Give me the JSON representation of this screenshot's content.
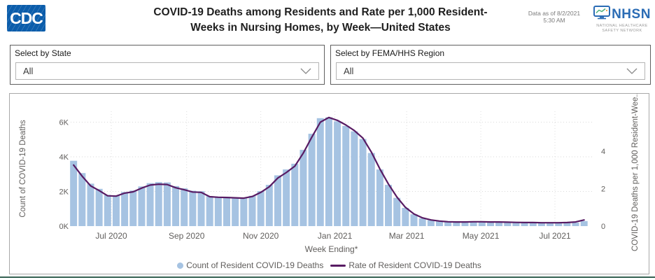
{
  "header": {
    "cdc_logo_text": "CDC",
    "title_lines": [
      "COVID-19 Deaths among Residents and Rate per 1,000 Resident-",
      "Weeks in Nursing Homes, by Week—United States"
    ],
    "data_as_of_line1": "Data as of 8/2/2021",
    "data_as_of_line2": "5:30 AM",
    "nhsn": {
      "acronym": "NHSN",
      "subtitle_line1": "NATIONAL HEALTHCARE",
      "subtitle_line2": "SAFETY NETWORK"
    }
  },
  "filters": [
    {
      "label": "Select by State",
      "value": "All"
    },
    {
      "label": "Select by FEMA/HHS Region",
      "value": "All"
    }
  ],
  "colors": {
    "cdc_blue": "#0b5dab",
    "nhsn_blue": "#2b6cb5",
    "bar_fill": "#a6c3e2",
    "rate_line": "#581b63",
    "divider_green": "#356253"
  },
  "chart_data": {
    "type": "combo",
    "title": "COVID-19 Deaths among Residents and Rate per 1,000 Resident-Weeks in Nursing Homes, by Week—United States",
    "xlabel": "Week Ending*",
    "ylabel_left": "Count of COVID-19 Deaths",
    "ylabel_right": "COVID-19 Deaths per 1,000 Resident-Wee...",
    "grid": true,
    "legend_position": "bottom",
    "y_left_ticks": [
      {
        "label": "0K",
        "value": 0
      },
      {
        "label": "2K",
        "value": 2000
      },
      {
        "label": "4K",
        "value": 4000
      },
      {
        "label": "6K",
        "value": 6000
      }
    ],
    "y_left_max": 6550,
    "y_right_ticks": [
      {
        "label": "0",
        "value": 0
      },
      {
        "label": "2",
        "value": 2
      },
      {
        "label": "4",
        "value": 4
      }
    ],
    "y_right_max": 6.1,
    "x_ticks": [
      {
        "label": "Jul 2020",
        "date": "2020-07-01"
      },
      {
        "label": "Sep 2020",
        "date": "2020-09-01"
      },
      {
        "label": "Nov 2020",
        "date": "2020-11-01"
      },
      {
        "label": "Jan 2021",
        "date": "2021-01-01"
      },
      {
        "label": "Mar 2021",
        "date": "2021-03-01"
      },
      {
        "label": "May 2021",
        "date": "2021-05-01"
      },
      {
        "label": "Jul 2021",
        "date": "2021-07-01"
      }
    ],
    "weeks": [
      "2020-05-31",
      "2020-06-07",
      "2020-06-14",
      "2020-06-21",
      "2020-06-28",
      "2020-07-05",
      "2020-07-12",
      "2020-07-19",
      "2020-07-26",
      "2020-08-02",
      "2020-08-09",
      "2020-08-16",
      "2020-08-23",
      "2020-08-30",
      "2020-09-06",
      "2020-09-13",
      "2020-09-20",
      "2020-09-27",
      "2020-10-04",
      "2020-10-11",
      "2020-10-18",
      "2020-10-25",
      "2020-11-01",
      "2020-11-08",
      "2020-11-15",
      "2020-11-22",
      "2020-11-29",
      "2020-12-06",
      "2020-12-13",
      "2020-12-20",
      "2020-12-27",
      "2021-01-03",
      "2021-01-10",
      "2021-01-17",
      "2021-01-24",
      "2021-01-31",
      "2021-02-07",
      "2021-02-14",
      "2021-02-21",
      "2021-02-28",
      "2021-03-07",
      "2021-03-14",
      "2021-03-21",
      "2021-03-28",
      "2021-04-04",
      "2021-04-11",
      "2021-04-18",
      "2021-04-25",
      "2021-05-02",
      "2021-05-09",
      "2021-05-16",
      "2021-05-23",
      "2021-05-30",
      "2021-06-06",
      "2021-06-13",
      "2021-06-20",
      "2021-06-27",
      "2021-07-04",
      "2021-07-11",
      "2021-07-18",
      "2021-07-25"
    ],
    "series": [
      {
        "name": "Count of Resident COVID-19 Deaths",
        "type": "bar",
        "axis": "left",
        "color": "#a6c3e2",
        "values": [
          3770,
          3060,
          2450,
          2150,
          1800,
          1780,
          1970,
          2050,
          2290,
          2480,
          2540,
          2520,
          2310,
          2180,
          2040,
          2010,
          1730,
          1700,
          1690,
          1660,
          1640,
          1750,
          2020,
          2380,
          2930,
          3270,
          3600,
          4400,
          5330,
          6230,
          6280,
          6050,
          5780,
          5470,
          5030,
          4220,
          3270,
          2380,
          1630,
          1050,
          680,
          450,
          340,
          270,
          230,
          210,
          215,
          220,
          225,
          215,
          210,
          200,
          195,
          185,
          180,
          175,
          170,
          170,
          180,
          200,
          290
        ]
      },
      {
        "name": "Rate of Resident COVID-19 Deaths",
        "type": "line",
        "axis": "right",
        "color": "#581b63",
        "values": [
          3.26,
          2.67,
          2.15,
          1.9,
          1.62,
          1.6,
          1.76,
          1.83,
          2.03,
          2.19,
          2.24,
          2.22,
          2.05,
          1.94,
          1.82,
          1.8,
          1.57,
          1.54,
          1.53,
          1.51,
          1.49,
          1.58,
          1.8,
          2.1,
          2.57,
          2.86,
          3.2,
          3.9,
          4.75,
          5.55,
          5.8,
          5.65,
          5.4,
          5.1,
          4.7,
          3.95,
          3.05,
          2.25,
          1.55,
          1.0,
          0.65,
          0.44,
          0.33,
          0.27,
          0.23,
          0.22,
          0.22,
          0.23,
          0.23,
          0.22,
          0.22,
          0.21,
          0.2,
          0.19,
          0.19,
          0.18,
          0.18,
          0.18,
          0.19,
          0.22,
          0.33
        ]
      }
    ]
  }
}
